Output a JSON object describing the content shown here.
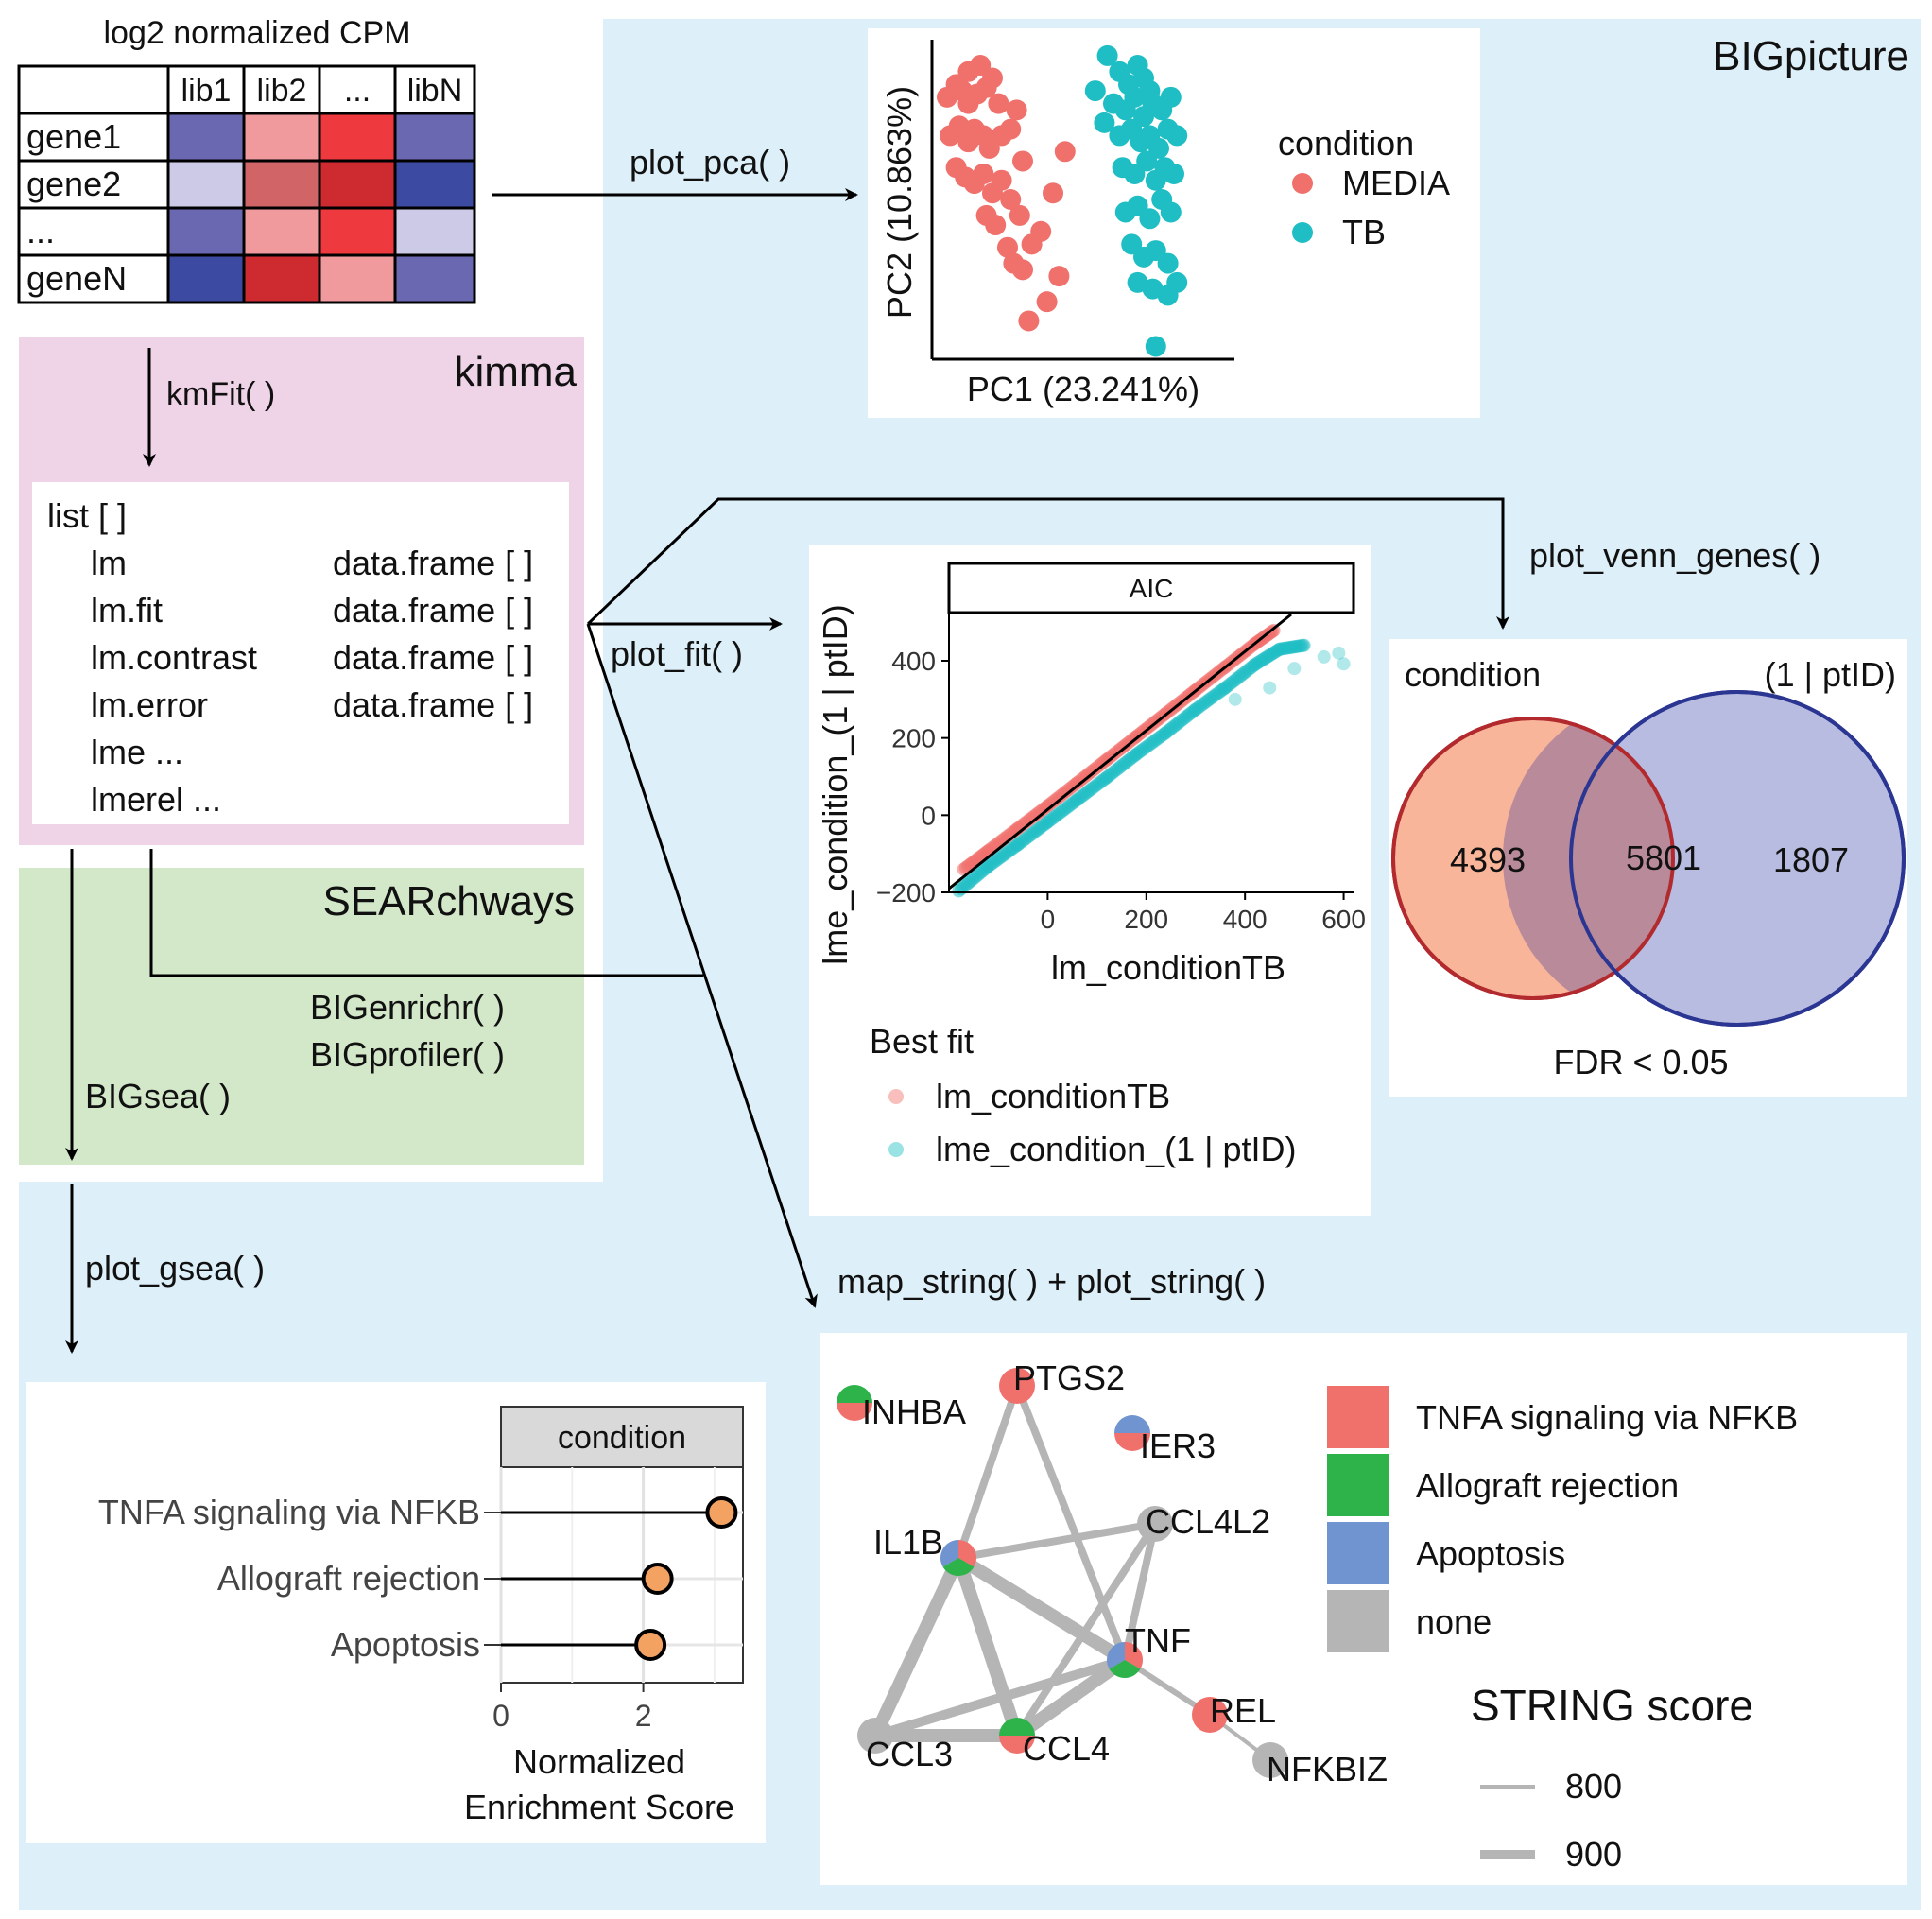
{
  "matrix": {
    "title": "log2 normalized CPM",
    "col_headers": [
      "lib1",
      "lib2",
      "...",
      "libN"
    ],
    "row_labels": [
      "gene1",
      "gene2",
      "...",
      "geneN"
    ],
    "cell_colors": [
      [
        "#6b68b2",
        "#f09a9e",
        "#ee3a3f",
        "#6b68b2"
      ],
      [
        "#cdcae7",
        "#d06467",
        "#cd2b2f",
        "#3d4aa1"
      ],
      [
        "#6b68b2",
        "#f09a9e",
        "#ee3a3f",
        "#cdcae7"
      ],
      [
        "#3d4aa1",
        "#cd2b2f",
        "#f09a9e",
        "#6b68b2"
      ]
    ]
  },
  "packages": {
    "bigpicture": "BIGpicture",
    "kimma": "kimma",
    "searchways": "SEARchways"
  },
  "functions": {
    "kmfit": "kmFit( )",
    "plot_pca": "plot_pca( )",
    "plot_fit": "plot_fit( )",
    "plot_venn_genes": "plot_venn_genes( )",
    "bigenrichr": "BIGenrichr( )",
    "bigprofiler": "BIGprofiler( )",
    "bigsea": "BIGsea( )",
    "plot_gsea": "plot_gsea( )",
    "map_string": "map_string( ) + plot_string( )"
  },
  "kimma_list": {
    "header": "list [ ]",
    "items": [
      {
        "name": "lm",
        "type": "data.frame [ ]"
      },
      {
        "name": "lm.fit",
        "type": "data.frame [ ]"
      },
      {
        "name": "lm.contrast",
        "type": "data.frame [ ]"
      },
      {
        "name": "lm.error",
        "type": "data.frame [ ]"
      },
      {
        "name": "lme ...",
        "type": ""
      },
      {
        "name": "lmerel ...",
        "type": ""
      }
    ]
  },
  "pca": {
    "xlabel": "PC1 (23.241%)",
    "ylabel": "PC2 (10.863%)",
    "legend_title": "condition",
    "series": [
      {
        "name": "MEDIA",
        "color": "#f0706b"
      },
      {
        "name": "TB",
        "color": "#1fbec4"
      }
    ]
  },
  "fit": {
    "panel_title": "AIC",
    "xlabel": "lm_conditionTB",
    "ylabel": "lme_condition_(1 | ptID)",
    "xticks": [
      "0",
      "200",
      "400",
      "600"
    ],
    "yticks": [
      "400",
      "200",
      "0",
      "−200"
    ],
    "legend_title": "Best fit",
    "series": [
      {
        "name": "lm_conditionTB",
        "color": "#f0706b"
      },
      {
        "name": "lme_condition_(1 | ptID)",
        "color": "#1fbec4"
      }
    ]
  },
  "venn": {
    "label_left": "condition",
    "label_right": "(1 | ptID)",
    "left_only": "4393",
    "overlap": "5801",
    "right_only": "1807",
    "caption": "FDR < 0.05"
  },
  "gsea": {
    "panel_title": "condition",
    "pathways": [
      "TNFA signaling via NFKB",
      "Allograft rejection",
      "Apoptosis"
    ],
    "xticks": [
      "0",
      "2"
    ],
    "xlabel_line1": "Normalized",
    "xlabel_line2": "Enrichment Score"
  },
  "string": {
    "nodes": [
      "PTGS2",
      "INHBA",
      "IER3",
      "CCL4L2",
      "IL1B",
      "TNF",
      "REL",
      "NFKBIZ",
      "CCL3",
      "CCL4"
    ],
    "legend_items": [
      {
        "label": "TNFA signaling via NFKB",
        "color": "#f0706b"
      },
      {
        "label": "Allograft rejection",
        "color": "#2db34a"
      },
      {
        "label": "Apoptosis",
        "color": "#6f94cf"
      },
      {
        "label": "none",
        "color": "#b5b5b5"
      }
    ],
    "score_title": "STRING score",
    "score_items": [
      "800",
      "900"
    ]
  },
  "chart_data": [
    {
      "type": "scatter",
      "name": "PCA",
      "xlabel": "PC1 (23.241%)",
      "ylabel": "PC2 (10.863%)",
      "series": [
        {
          "name": "MEDIA",
          "points": [
            [
              0.05,
              0.82
            ],
            [
              0.08,
              0.86
            ],
            [
              0.1,
              0.84
            ],
            [
              0.12,
              0.8
            ],
            [
              0.15,
              0.83
            ],
            [
              0.18,
              0.85
            ],
            [
              0.2,
              0.88
            ],
            [
              0.22,
              0.8
            ],
            [
              0.06,
              0.7
            ],
            [
              0.09,
              0.73
            ],
            [
              0.12,
              0.68
            ],
            [
              0.14,
              0.72
            ],
            [
              0.17,
              0.7
            ],
            [
              0.19,
              0.66
            ],
            [
              0.23,
              0.7
            ],
            [
              0.26,
              0.72
            ],
            [
              0.3,
              0.62
            ],
            [
              0.08,
              0.6
            ],
            [
              0.11,
              0.57
            ],
            [
              0.14,
              0.55
            ],
            [
              0.17,
              0.58
            ],
            [
              0.2,
              0.52
            ],
            [
              0.23,
              0.56
            ],
            [
              0.26,
              0.5
            ],
            [
              0.29,
              0.45
            ],
            [
              0.18,
              0.45
            ],
            [
              0.21,
              0.42
            ],
            [
              0.25,
              0.35
            ],
            [
              0.27,
              0.3
            ],
            [
              0.3,
              0.28
            ],
            [
              0.33,
              0.36
            ],
            [
              0.36,
              0.4
            ],
            [
              0.4,
              0.52
            ],
            [
              0.42,
              0.26
            ],
            [
              0.38,
              0.18
            ],
            [
              0.32,
              0.12
            ],
            [
              0.44,
              0.65
            ],
            [
              0.12,
              0.9
            ],
            [
              0.16,
              0.92
            ],
            [
              0.28,
              0.78
            ]
          ]
        },
        {
          "name": "TB",
          "points": [
            [
              0.58,
              0.95
            ],
            [
              0.62,
              0.9
            ],
            [
              0.65,
              0.86
            ],
            [
              0.68,
              0.92
            ],
            [
              0.7,
              0.88
            ],
            [
              0.72,
              0.84
            ],
            [
              0.6,
              0.8
            ],
            [
              0.64,
              0.78
            ],
            [
              0.67,
              0.82
            ],
            [
              0.7,
              0.76
            ],
            [
              0.73,
              0.8
            ],
            [
              0.76,
              0.78
            ],
            [
              0.79,
              0.82
            ],
            [
              0.62,
              0.7
            ],
            [
              0.66,
              0.72
            ],
            [
              0.69,
              0.68
            ],
            [
              0.72,
              0.7
            ],
            [
              0.75,
              0.66
            ],
            [
              0.78,
              0.72
            ],
            [
              0.81,
              0.7
            ],
            [
              0.63,
              0.6
            ],
            [
              0.67,
              0.58
            ],
            [
              0.71,
              0.62
            ],
            [
              0.74,
              0.56
            ],
            [
              0.77,
              0.6
            ],
            [
              0.8,
              0.58
            ],
            [
              0.64,
              0.46
            ],
            [
              0.68,
              0.48
            ],
            [
              0.72,
              0.44
            ],
            [
              0.76,
              0.5
            ],
            [
              0.79,
              0.46
            ],
            [
              0.66,
              0.36
            ],
            [
              0.7,
              0.32
            ],
            [
              0.74,
              0.34
            ],
            [
              0.78,
              0.3
            ],
            [
              0.68,
              0.24
            ],
            [
              0.73,
              0.22
            ],
            [
              0.78,
              0.2
            ],
            [
              0.81,
              0.24
            ],
            [
              0.74,
              0.04
            ],
            [
              0.54,
              0.84
            ],
            [
              0.57,
              0.74
            ]
          ]
        }
      ]
    },
    {
      "type": "scatter",
      "name": "AIC",
      "xlabel": "lm_conditionTB",
      "ylabel": "lme_condition_(1 | ptID)",
      "xlim": [
        -200,
        620
      ],
      "ylim": [
        -200,
        520
      ],
      "series": [
        {
          "name": "lm_conditionTB",
          "points": [
            [
              -170,
              -140
            ],
            [
              -120,
              -92
            ],
            [
              -60,
              -34
            ],
            [
              0,
              24
            ],
            [
              60,
              84
            ],
            [
              120,
              144
            ],
            [
              180,
              204
            ],
            [
              240,
              264
            ],
            [
              300,
              324
            ],
            [
              360,
              384
            ],
            [
              420,
              444
            ],
            [
              460,
              480
            ]
          ]
        },
        {
          "name": "lme_condition_(1 | ptID)",
          "points": [
            [
              -180,
              -196
            ],
            [
              -120,
              -132
            ],
            [
              -60,
              -76
            ],
            [
              0,
              -18
            ],
            [
              60,
              40
            ],
            [
              120,
              98
            ],
            [
              180,
              158
            ],
            [
              240,
              214
            ],
            [
              300,
              274
            ],
            [
              360,
              330
            ],
            [
              420,
              390
            ],
            [
              470,
              430
            ],
            [
              520,
              440
            ],
            [
              560,
              410
            ],
            [
              590,
              420
            ],
            [
              600,
              392
            ],
            [
              500,
              380
            ],
            [
              450,
              330
            ],
            [
              380,
              300
            ]
          ]
        }
      ]
    },
    {
      "type": "bar",
      "name": "condition",
      "categories": [
        "TNFA signaling via NFKB",
        "Allograft rejection",
        "Apoptosis"
      ],
      "values": [
        3.1,
        2.2,
        2.1
      ],
      "xlim": [
        0,
        3.4
      ]
    }
  ]
}
